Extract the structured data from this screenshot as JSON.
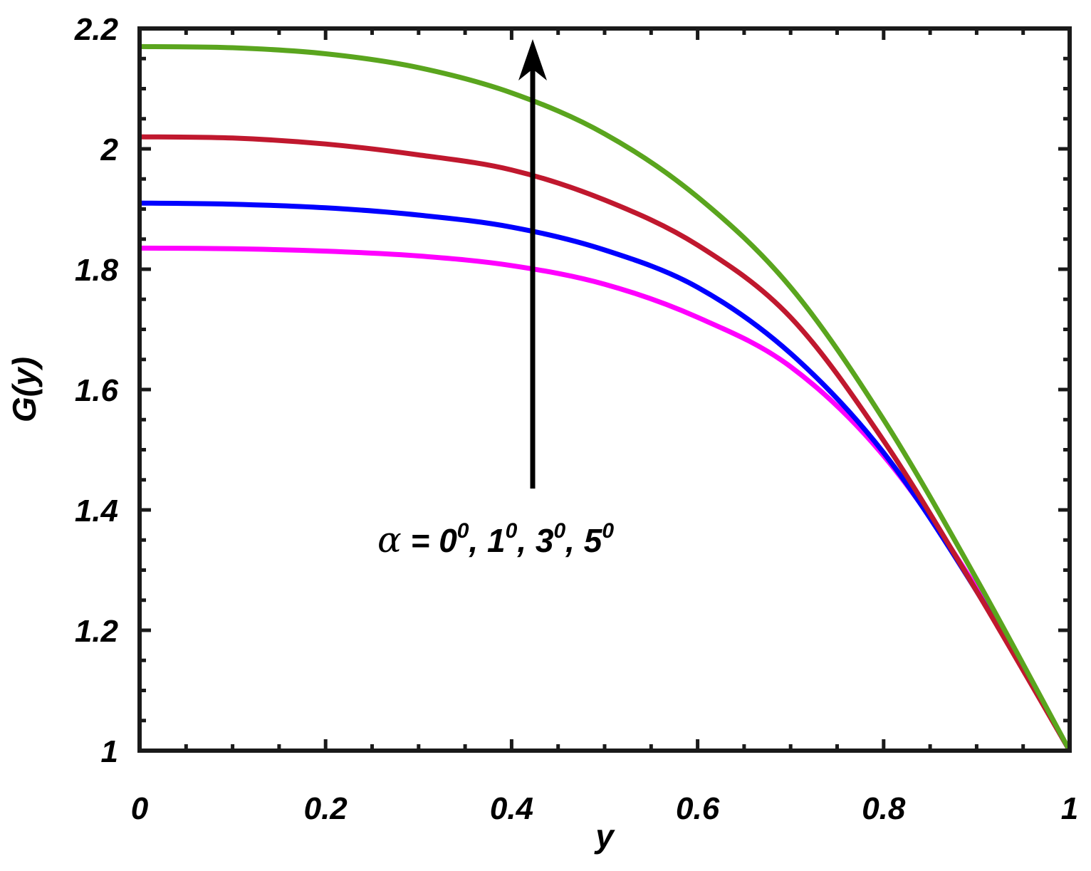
{
  "chart_data": {
    "type": "line",
    "xlabel": "y",
    "ylabel": "G(y)",
    "xlim": [
      0,
      1
    ],
    "ylim": [
      1,
      2.2
    ],
    "x_ticks": [
      "0",
      "0.2",
      "0.4",
      "0.6",
      "0.8",
      "1"
    ],
    "y_ticks": [
      "1",
      "1.2",
      "1.4",
      "1.6",
      "1.8",
      "2",
      "2.2"
    ],
    "grid": false,
    "annotation": {
      "prefix": "α = ",
      "values": [
        "0",
        "1",
        "3",
        "5"
      ],
      "superscript": "0",
      "arrow_direction": "up"
    },
    "series": [
      {
        "color": "#ff00ff",
        "x": [
          0,
          0.1,
          0.2,
          0.3,
          0.4,
          0.5,
          0.6,
          0.7,
          0.8,
          0.9,
          1.0
        ],
        "values": [
          1.835,
          1.834,
          1.83,
          1.822,
          1.806,
          1.775,
          1.72,
          1.638,
          1.49,
          1.27,
          1.0
        ]
      },
      {
        "color": "#0000ff",
        "x": [
          0,
          0.1,
          0.2,
          0.3,
          0.4,
          0.5,
          0.6,
          0.7,
          0.8,
          0.9,
          1.0
        ],
        "values": [
          1.91,
          1.908,
          1.902,
          1.89,
          1.87,
          1.832,
          1.77,
          1.66,
          1.495,
          1.265,
          1.0
        ]
      },
      {
        "color": "#c0182e",
        "x": [
          0,
          0.1,
          0.2,
          0.3,
          0.4,
          0.5,
          0.6,
          0.7,
          0.8,
          0.9,
          1.0
        ],
        "values": [
          2.02,
          2.018,
          2.008,
          1.99,
          1.965,
          1.915,
          1.84,
          1.72,
          1.515,
          1.265,
          1.0
        ]
      },
      {
        "color": "#5aa51e",
        "x": [
          0,
          0.1,
          0.2,
          0.3,
          0.4,
          0.5,
          0.6,
          0.7,
          0.8,
          0.9,
          1.0
        ],
        "values": [
          2.17,
          2.168,
          2.158,
          2.135,
          2.093,
          2.025,
          1.92,
          1.77,
          1.55,
          1.285,
          1.0
        ]
      }
    ]
  }
}
